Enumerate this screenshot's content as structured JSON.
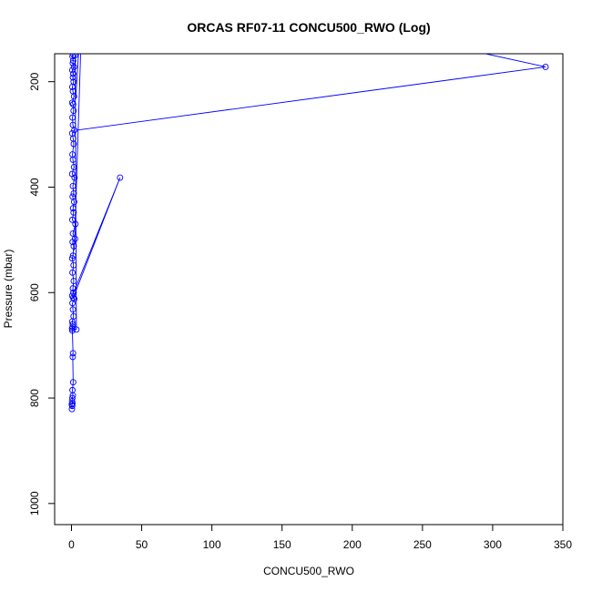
{
  "chart_data": {
    "type": "line",
    "title": "ORCAS RF07-11 CONCU500_RWO (Log)",
    "xlabel": "CONCU500_RWO",
    "ylabel": "Pressure (mbar)",
    "xlim": [
      -12,
      350
    ],
    "ylim": [
      1040,
      147
    ],
    "y_reversed": true,
    "x_ticks": [
      0,
      50,
      100,
      150,
      200,
      250,
      300,
      350
    ],
    "x_tick_labels": [
      "0",
      "50",
      "100",
      "150",
      "200",
      "250",
      "300",
      "350"
    ],
    "y_ticks": [
      200,
      400,
      600,
      800,
      1000
    ],
    "y_tick_labels": [
      "200",
      "400",
      "600",
      "800",
      "1000"
    ],
    "series": [
      {
        "color": "#0000ff",
        "marker": "open-circle",
        "points": [
          [
            0.3,
            821
          ],
          [
            0.5,
            815
          ],
          [
            0.2,
            812
          ],
          [
            0.8,
            810
          ],
          [
            0.4,
            806
          ],
          [
            0.6,
            800
          ],
          [
            1.0,
            795
          ],
          [
            0.7,
            785
          ],
          [
            1.2,
            770
          ],
          [
            0.9,
            722
          ],
          [
            1.1,
            715
          ],
          [
            0.6,
            672
          ],
          [
            0.4,
            668
          ],
          [
            0.8,
            665
          ],
          [
            0.9,
            660
          ],
          [
            0.5,
            655
          ],
          [
            1.5,
            645
          ],
          [
            1.0,
            632
          ],
          [
            0.7,
            620
          ],
          [
            2.0,
            612
          ],
          [
            0.5,
            606
          ],
          [
            1.3,
            600
          ],
          [
            1.0,
            592
          ],
          [
            1.6,
            578
          ],
          [
            0.7,
            562
          ],
          [
            1.5,
            548
          ],
          [
            0.5,
            535
          ],
          [
            1.1,
            530
          ],
          [
            1.6,
            512
          ],
          [
            0.8,
            504
          ],
          [
            2.5,
            498
          ],
          [
            1.0,
            488
          ],
          [
            2.8,
            470
          ],
          [
            0.6,
            462
          ],
          [
            1.5,
            448
          ],
          [
            1.1,
            440
          ],
          [
            1.9,
            428
          ],
          [
            0.8,
            418
          ],
          [
            1.6,
            412
          ],
          [
            1.0,
            398
          ],
          [
            2.2,
            382
          ],
          [
            0.5,
            375
          ],
          [
            1.8,
            362
          ],
          [
            1.0,
            348
          ],
          [
            0.7,
            338
          ],
          [
            1.6,
            318
          ],
          [
            1.2,
            308
          ],
          [
            0.5,
            298
          ],
          [
            2.0,
            292
          ],
          [
            1.0,
            282
          ],
          [
            0.7,
            268
          ],
          [
            1.5,
            255
          ],
          [
            1.2,
            243
          ],
          [
            0.5,
            240
          ],
          [
            1.8,
            228
          ],
          [
            1.0,
            218
          ],
          [
            0.6,
            210
          ],
          [
            1.5,
            200
          ],
          [
            1.0,
            192
          ],
          [
            1.3,
            185
          ],
          [
            0.6,
            178
          ],
          [
            1.8,
            172
          ],
          [
            0.9,
            165
          ],
          [
            1.2,
            160
          ],
          [
            0.7,
            152
          ],
          [
            1.5,
            149
          ]
        ],
        "excursions": [
          {
            "path": [
              [
                0.6,
                606
              ],
              [
                34.6,
                382
              ],
              [
                1.2,
                610
              ]
            ]
          },
          {
            "path": [
              [
                0.5,
                668
              ],
              [
                3.5,
                670
              ],
              [
                2.6,
                150
              ]
            ]
          },
          {
            "path": [
              [
                3.6,
                292
              ],
              [
                337.7,
                172
              ],
              [
                295,
                147
              ]
            ]
          },
          {
            "path": [
              [
                2.0,
                520
              ],
              [
                6.5,
                147
              ]
            ]
          },
          {
            "path": [
              [
                3.0,
                232
              ],
              [
                5.0,
                147
              ]
            ]
          }
        ]
      }
    ]
  }
}
